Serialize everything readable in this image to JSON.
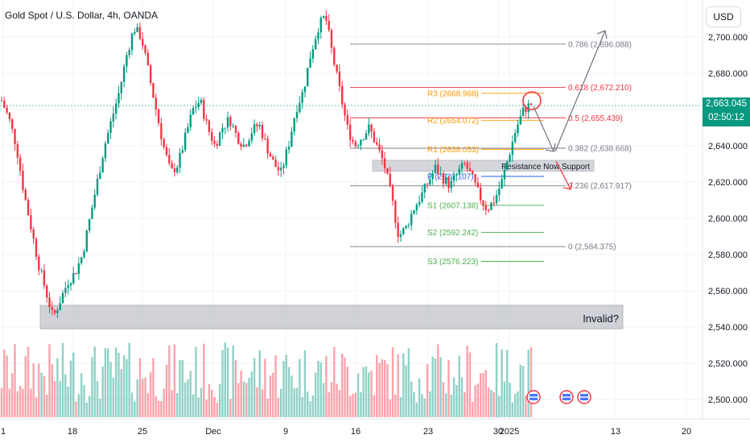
{
  "header": {
    "title": "Gold Spot / U.S. Dollar, 4h, OANDA",
    "currency_button": "USD"
  },
  "price_tag": {
    "price": "2,663.045",
    "countdown": "02:50:12",
    "color": "#089981"
  },
  "colors": {
    "up": "#089981",
    "down": "#f23645",
    "fib": "#787b86",
    "pivot_r": "#ff9800",
    "pivot_s": "#4caf50",
    "pivot_p": "#2962ff",
    "zone": "#b2b5be"
  },
  "chart_data": {
    "type": "candlestick",
    "title": "Gold Spot / U.S. Dollar, 4h, OANDA",
    "y_ticks": [
      "2,700.000",
      "2,680.000",
      "2,660.000",
      "2,640.000",
      "2,620.000",
      "2,600.000",
      "2,580.000",
      "2,560.000",
      "2,540.000",
      "2,520.000",
      "2,500.000"
    ],
    "y_tick_values": [
      2700,
      2680,
      2660,
      2640,
      2620,
      2600,
      2580,
      2560,
      2540,
      2520,
      2500
    ],
    "ylim": [
      2494,
      2717
    ],
    "x_tick_labels": [
      "1",
      "18",
      "25",
      "Dec",
      "9",
      "16",
      "23",
      "30",
      "2025",
      "13",
      "20"
    ],
    "last_price": 2663.045,
    "fib_levels": [
      {
        "label": "0.786 (2,696.088)",
        "value": 2696.088
      },
      {
        "label": "0.618 (2,672.210)",
        "value": 2672.21
      },
      {
        "label": "0.5 (2,655.439)",
        "value": 2655.439
      },
      {
        "label": "0.382 (2,638.668)",
        "value": 2638.668
      },
      {
        "label": "0.236 (2,617.917)",
        "value": 2617.917
      },
      {
        "label": "0 (2,584.375)",
        "value": 2584.375
      }
    ],
    "pivot_levels": [
      {
        "label": "R3 (2668.968)",
        "value": 2668.968,
        "kind": "r"
      },
      {
        "label": "R2 (2654.072)",
        "value": 2654.072,
        "kind": "r"
      },
      {
        "label": "R1 (2638.053)",
        "value": 2638.053,
        "kind": "r"
      },
      {
        "label": "P (2623.107)",
        "value": 2623.107,
        "kind": "p"
      },
      {
        "label": "S1 (2607.138)",
        "value": 2607.138,
        "kind": "s"
      },
      {
        "label": "S2 (2592.242)",
        "value": 2592.242,
        "kind": "s"
      },
      {
        "label": "S3 (2576.223)",
        "value": 2576.223,
        "kind": "s"
      }
    ],
    "zones": [
      {
        "label": "Resistance Now Support",
        "top": 2632,
        "bottom": 2626
      },
      {
        "label": "Invalid?",
        "top": 2552,
        "bottom": 2539
      }
    ],
    "price_path": [
      2665,
      2655,
      2640,
      2615,
      2595,
      2575,
      2560,
      2545,
      2555,
      2565,
      2570,
      2580,
      2600,
      2620,
      2640,
      2655,
      2670,
      2690,
      2705,
      2700,
      2680,
      2660,
      2640,
      2625,
      2630,
      2645,
      2660,
      2665,
      2650,
      2640,
      2650,
      2655,
      2645,
      2640,
      2648,
      2652,
      2640,
      2630,
      2625,
      2640,
      2660,
      2670,
      2690,
      2705,
      2712,
      2690,
      2670,
      2650,
      2640,
      2645,
      2650,
      2640,
      2630,
      2612,
      2590,
      2595,
      2605,
      2612,
      2620,
      2628,
      2622,
      2618,
      2625,
      2630,
      2622,
      2612,
      2605,
      2610,
      2620,
      2635,
      2650,
      2660,
      2663
    ]
  }
}
